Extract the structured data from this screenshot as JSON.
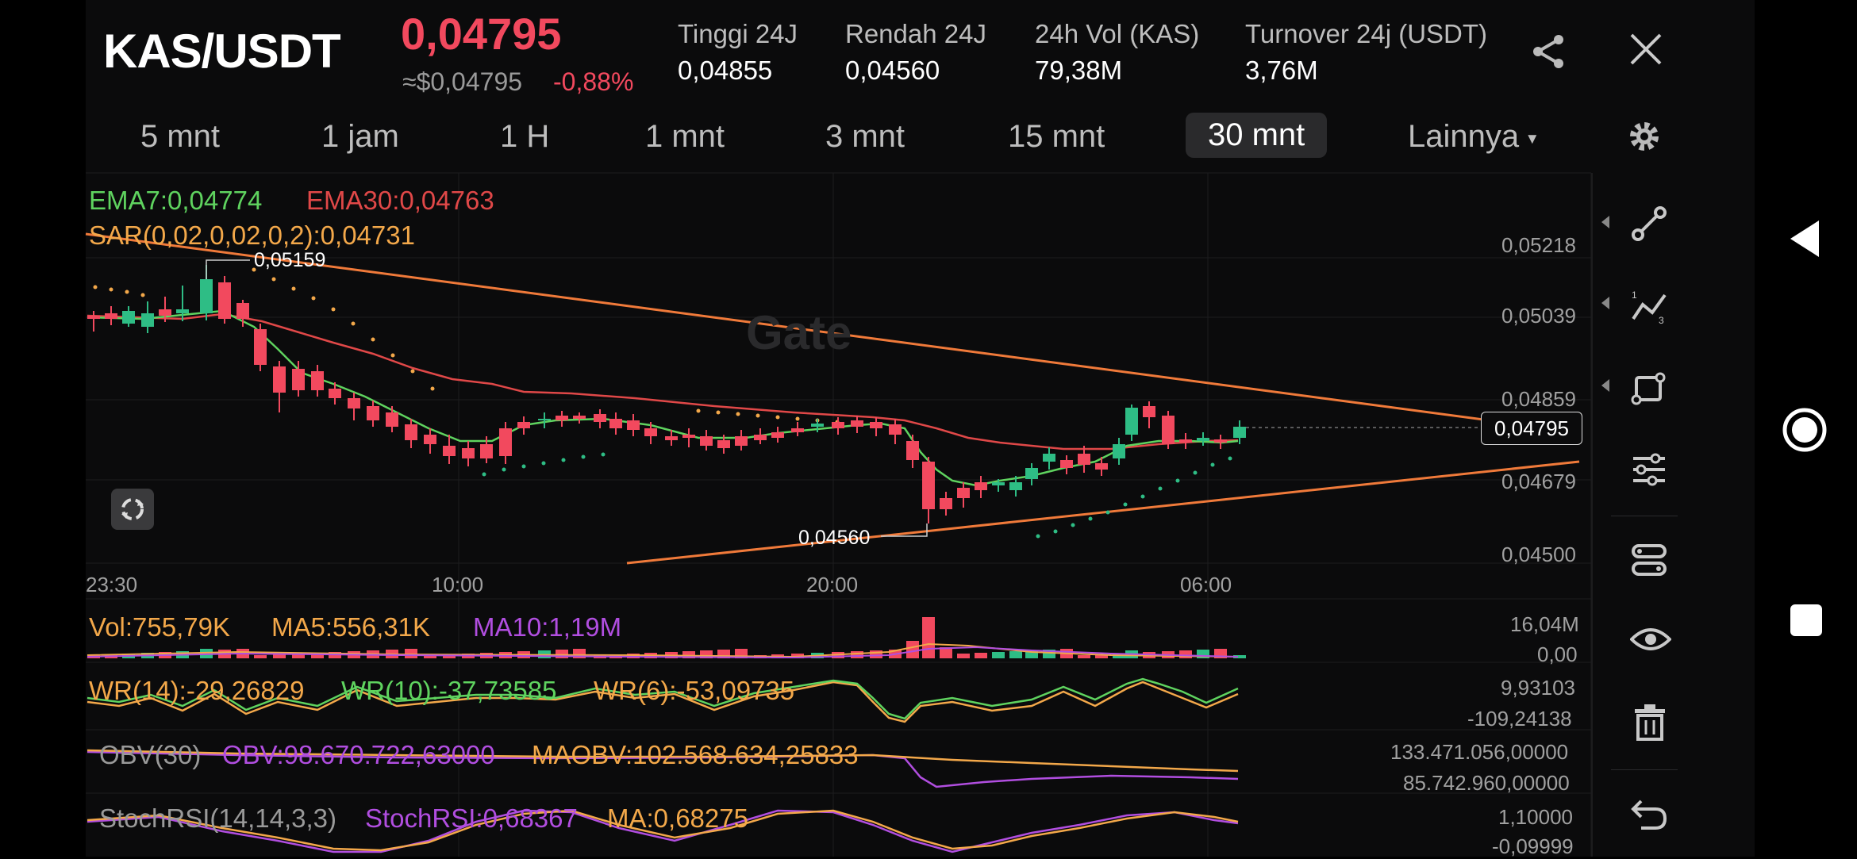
{
  "header": {
    "pair": "KAS/USDT",
    "price": "0,04795",
    "usd_price": "≈$0,04795",
    "change": "-0,88%",
    "stats": [
      {
        "label": "Tinggi 24J",
        "value": "0,04855"
      },
      {
        "label": "Rendah 24J",
        "value": "0,04560"
      },
      {
        "label": "24h Vol (KAS)",
        "value": "79,38M"
      },
      {
        "label": "Turnover 24j (USDT)",
        "value": "3,76M"
      }
    ]
  },
  "timeframes": [
    "5 mnt",
    "1 jam",
    "1 H",
    "1 mnt",
    "3 mnt",
    "15 mnt",
    "30 mnt"
  ],
  "active_timeframe": "30 mnt",
  "more_label": "Lainnya",
  "indicators": {
    "ema7": "EMA7:0,04774",
    "ema30": "EMA30:0,04763",
    "sar": "SAR(0,02,0,02,0,2):0,04731",
    "vol": "Vol:755,79K",
    "ma5": "MA5:556,31K",
    "ma10": "MA10:1,19M",
    "wr14": "WR(14):-29,26829",
    "wr10": "WR(10):-37,73585",
    "wr6": "WR(6):-53,09735",
    "obv30": "OBV(30)",
    "obv": "OBV:98.670.722,63000",
    "maobv": "MAOBV:102.568.634,25833",
    "stochrsi_name": "StochRSI(14,14,3,3)",
    "stochrsi": "StochRSI:0,68367",
    "stochrsi_ma": "MA:0,68275"
  },
  "chart": {
    "watermark": "Gate",
    "high_marker": "0,05159",
    "low_marker": "0,04560",
    "current_price": "0,04795",
    "y_axis": [
      "0,05218",
      "0,05039",
      "0,04859",
      "0,04679",
      "0,04500"
    ],
    "x_axis": [
      "23:30",
      "10:00",
      "20:00",
      "06:00"
    ],
    "vol_axis": [
      "16,04M",
      "0,00"
    ],
    "wr_axis": [
      "9,93103",
      "-109,24138"
    ],
    "obv_axis": [
      "133.471.056,00000",
      "85.742.960,00000"
    ],
    "stoch_axis": [
      "1,10000",
      "-0,09999"
    ]
  },
  "colors": {
    "up": "#2ebd85",
    "down": "#f2495e",
    "ema7": "#5fd35f",
    "ema30": "#e04848",
    "sar": "#f3a84a",
    "purple": "#b14ee0",
    "trend": "#f07a3a"
  },
  "sidebar_icons": [
    "draw-line-icon",
    "trend-tool-icon",
    "shape-tool-icon",
    "settings-sliders-icon",
    "path-tool-icon",
    "eye-icon",
    "trash-icon",
    "undo-icon"
  ],
  "nav": [
    "back-icon",
    "home-icon",
    "recents-icon"
  ]
}
